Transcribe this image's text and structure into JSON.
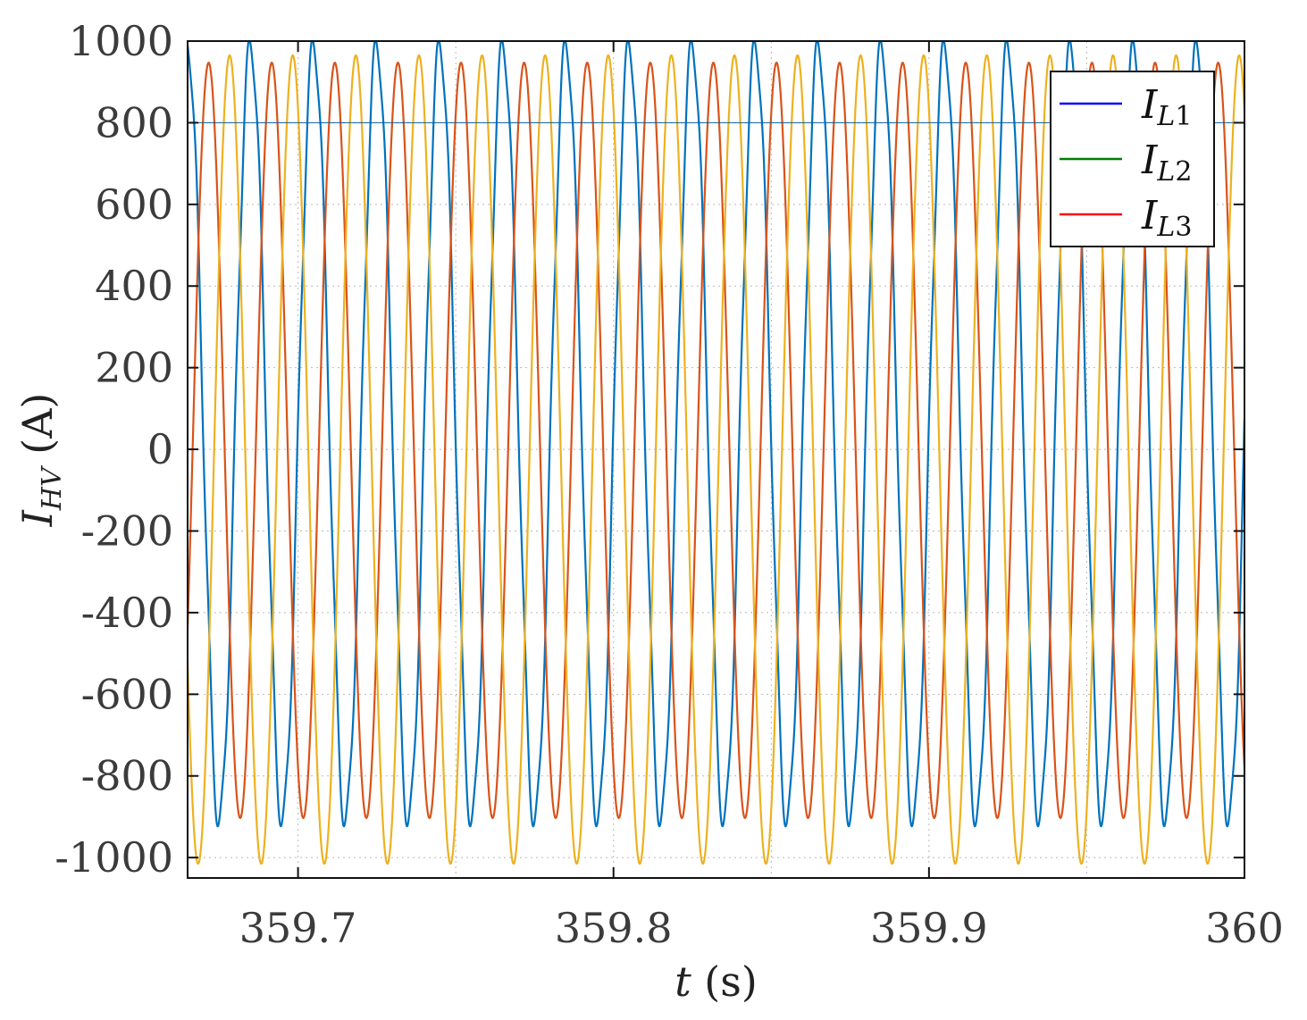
{
  "chart_data": {
    "type": "line",
    "title": "",
    "xlabel": "t (s)",
    "ylabel": "I_HV (A)",
    "xlim": [
      359.665,
      360.0
    ],
    "ylim": [
      -1050,
      1000
    ],
    "x_ticks": [
      359.7,
      359.8,
      359.9,
      360
    ],
    "x_tick_labels": [
      "359.7",
      "359.8",
      "359.9",
      "360"
    ],
    "y_ticks": [
      1000,
      800,
      600,
      400,
      200,
      0,
      -200,
      -400,
      -600,
      -800,
      -1000
    ],
    "y_tick_labels": [
      "1000",
      "800",
      "600",
      "400",
      "200",
      "0",
      "-200",
      "-400",
      "-600",
      "-800",
      "-1000"
    ],
    "grid": true,
    "legend": {
      "position": "top-right",
      "entries": [
        {
          "name": "I_L1",
          "color": "#0000ff"
        },
        {
          "name": "I_L2",
          "color": "#007f00"
        },
        {
          "name": "I_L3",
          "color": "#ff0000"
        }
      ]
    },
    "reference_line_y": 800,
    "frequency_hz": 50,
    "series": [
      {
        "color": "#0072bd",
        "amplitude": 950,
        "offset": 40,
        "phase_deg": 90,
        "harmonic_5th": 35,
        "x_start": 359.665,
        "x_end": 360.0,
        "points": 5000
      },
      {
        "color": "#d95319",
        "amplitude": 925,
        "offset": 22,
        "phase_deg": -30,
        "harmonic_5th": 0,
        "x_start": 359.665,
        "x_end": 360.0,
        "points": 5000
      },
      {
        "color": "#edb120",
        "amplitude": 990,
        "offset": -25,
        "phase_deg": 210,
        "harmonic_5th": 0,
        "x_start": 359.665,
        "x_end": 360.0,
        "points": 5000
      }
    ]
  }
}
